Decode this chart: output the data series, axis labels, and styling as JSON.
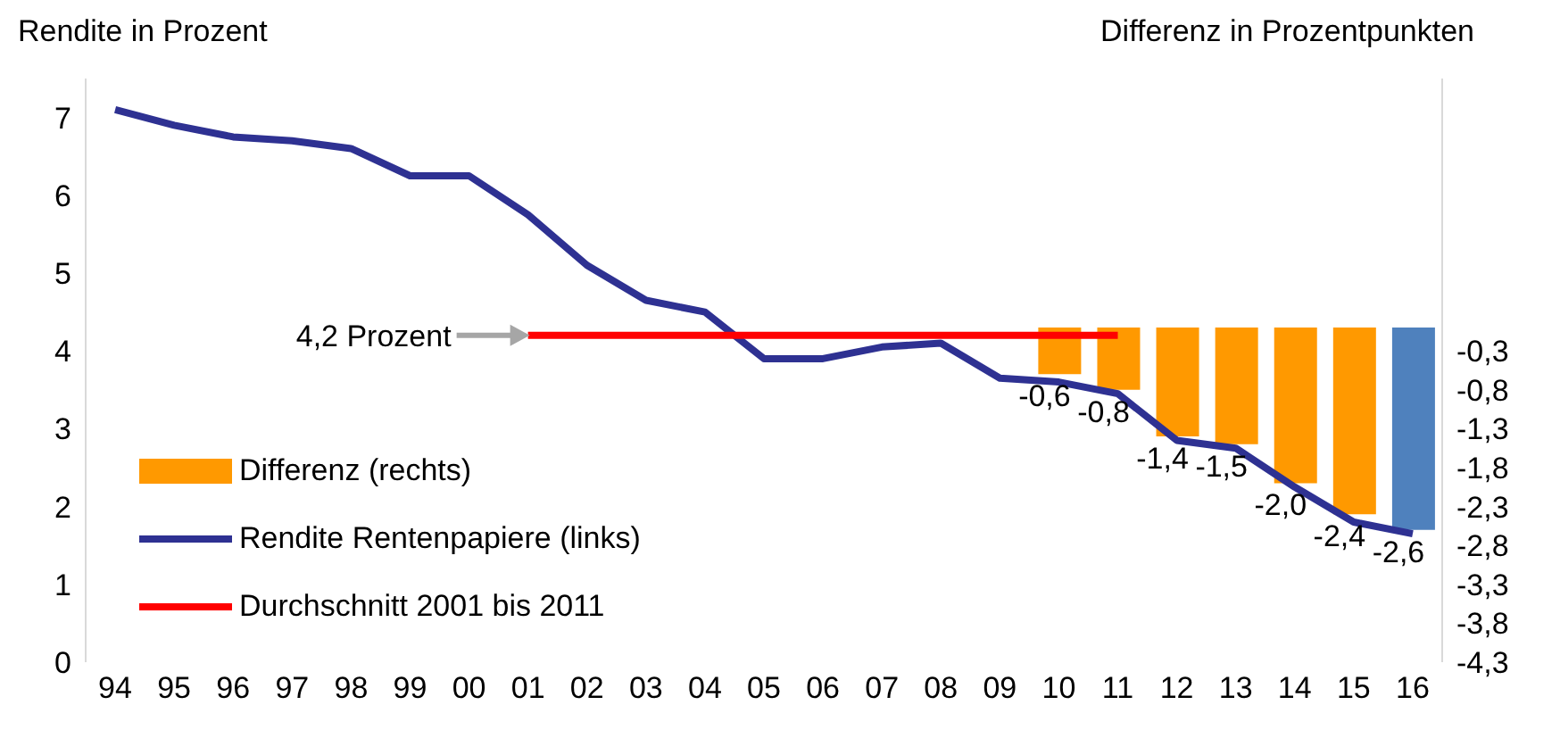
{
  "chart_data": {
    "type": "line",
    "ylabel": "Rendite in Prozent",
    "y2label": "Differenz in Prozentpunkten",
    "categories": [
      "94",
      "95",
      "96",
      "97",
      "98",
      "99",
      "00",
      "01",
      "02",
      "03",
      "04",
      "05",
      "06",
      "07",
      "08",
      "09",
      "10",
      "11",
      "12",
      "13",
      "14",
      "15",
      "16"
    ],
    "series": [
      {
        "type": "bar",
        "name": "Differenz (rechts)",
        "axis": "y2",
        "color": "#ff9900",
        "colors": [
          null,
          null,
          null,
          null,
          null,
          null,
          null,
          null,
          null,
          null,
          null,
          null,
          null,
          null,
          null,
          null,
          "#ff9900",
          "#ff9900",
          "#ff9900",
          "#ff9900",
          "#ff9900",
          "#ff9900",
          "#4f81bd"
        ],
        "values": [
          null,
          null,
          null,
          null,
          null,
          null,
          null,
          null,
          null,
          null,
          null,
          null,
          null,
          null,
          null,
          null,
          -0.6,
          -0.8,
          -1.4,
          -1.5,
          -2.0,
          -2.4,
          -2.6
        ],
        "value_labels": [
          null,
          null,
          null,
          null,
          null,
          null,
          null,
          null,
          null,
          null,
          null,
          null,
          null,
          null,
          null,
          null,
          "-0,6",
          "-0,8",
          "-1,4",
          "-1,5",
          "-2,0",
          "-2,4",
          "-2,6"
        ]
      },
      {
        "name": "Rendite Rentenpapiere (links)",
        "color": "#2e3192",
        "values": [
          7.1,
          6.9,
          6.75,
          6.7,
          6.6,
          6.25,
          6.25,
          5.75,
          5.1,
          4.65,
          4.5,
          3.9,
          3.9,
          4.05,
          4.1,
          3.65,
          3.6,
          3.45,
          2.85,
          2.75,
          2.25,
          1.8,
          1.65
        ]
      },
      {
        "name": "Durchschnitt 2001 bis 2011",
        "color": "#ff0000",
        "values": [
          null,
          null,
          null,
          null,
          null,
          null,
          null,
          4.2,
          4.2,
          4.2,
          4.2,
          4.2,
          4.2,
          4.2,
          4.2,
          4.2,
          4.2,
          4.2,
          null,
          null,
          null,
          null,
          null
        ]
      }
    ],
    "annotations": [
      {
        "text": "4,2 Prozent",
        "x": "01",
        "y": 4.2
      }
    ],
    "ylim": [
      0,
      7.5
    ],
    "yticks": [
      0,
      1,
      2,
      3,
      4,
      5,
      6,
      7
    ],
    "y2lim": [
      -4.3,
      3.2
    ],
    "y2ticks": [
      {
        "value": -4.3,
        "label": "-4,3"
      },
      {
        "value": -3.8,
        "label": "-3,8"
      },
      {
        "value": -3.3,
        "label": "-3,3"
      },
      {
        "value": -2.8,
        "label": "-2,8"
      },
      {
        "value": -2.3,
        "label": "-2,3"
      },
      {
        "value": -1.8,
        "label": "-1,8"
      },
      {
        "value": -1.3,
        "label": "-1,3"
      },
      {
        "value": -0.8,
        "label": "-0,8"
      },
      {
        "value": -0.3,
        "label": "-0,3"
      }
    ],
    "legend": "left",
    "marker": "none"
  }
}
